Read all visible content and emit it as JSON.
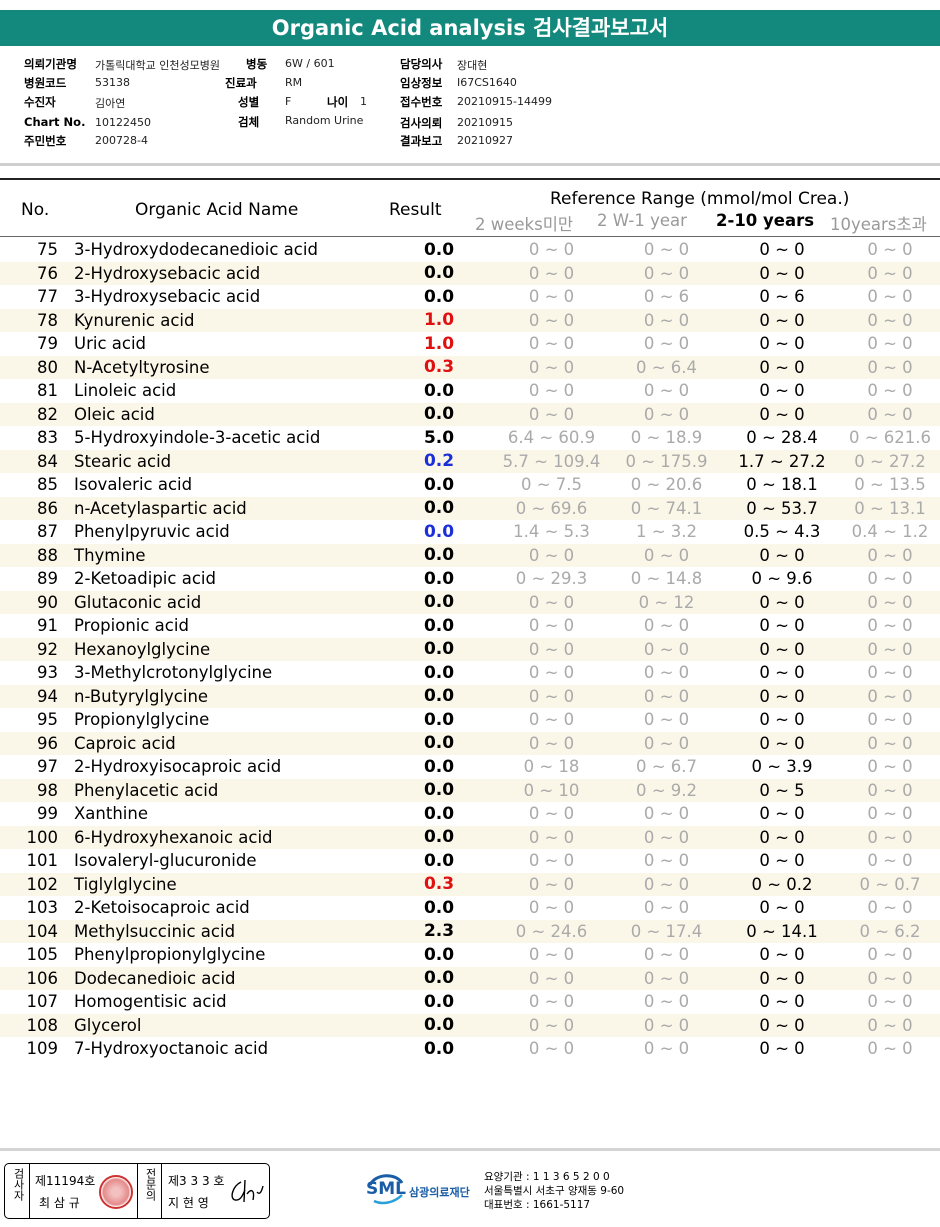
{
  "title": "Organic Acid analysis 검사결과보고서",
  "info": {
    "hospital_label": "의뢰기관명",
    "hospital": "가톨릭대학교 인천성모병원",
    "ward_label": "병동",
    "ward": "6W / 601",
    "doctor_label": "담당의사",
    "doctor": "장대현",
    "code_label": "병원코드",
    "code": "53138",
    "dept_label": "진료과",
    "dept": "RM",
    "clinical_label": "임상정보",
    "clinical": "I67CS1640",
    "patient_label": "수진자",
    "patient": "김아연",
    "sex_label": "성별",
    "sex": "F",
    "age_label": "나이",
    "age": "1",
    "receipt_label": "접수번호",
    "receipt": "20210915-14499",
    "chart_label": "Chart No.",
    "chart": "10122450",
    "specimen_label": "검체",
    "specimen": "Random Urine",
    "request_label": "검사의뢰",
    "request": "20210915",
    "id_label": "주민번호",
    "id": "200728-4",
    "report_label": "결과보고",
    "report": "20210927"
  },
  "table_header": {
    "no": "No.",
    "name": "Organic Acid Name",
    "result": "Result",
    "ref": "Reference Range (mmol/mol Crea.)",
    "c1": "2 weeks미만",
    "c2": "2 W-1 year",
    "c3": "2-10 years",
    "c4": "10years초과"
  },
  "colors": {
    "high": "#e01010",
    "low": "#1b2ed8",
    "header_bar": "#13897d"
  },
  "rows": [
    {
      "no": "75",
      "name": "3-Hydroxydodecanedioic acid",
      "result": "0.0",
      "flag": "",
      "r1": "0 ~ 0",
      "r2": "0 ~ 0",
      "r3": "0 ~ 0",
      "r4": "0 ~ 0"
    },
    {
      "no": "76",
      "name": "2-Hydroxysebacic acid",
      "result": "0.0",
      "flag": "",
      "r1": "0 ~ 0",
      "r2": "0 ~ 0",
      "r3": "0 ~ 0",
      "r4": "0 ~ 0"
    },
    {
      "no": "77",
      "name": "3-Hydroxysebacic acid",
      "result": "0.0",
      "flag": "",
      "r1": "0 ~ 0",
      "r2": "0 ~ 6",
      "r3": "0 ~ 6",
      "r4": "0 ~ 0"
    },
    {
      "no": "78",
      "name": "Kynurenic acid",
      "result": "1.0",
      "flag": "high",
      "r1": "0 ~ 0",
      "r2": "0 ~ 0",
      "r3": "0 ~ 0",
      "r4": "0 ~ 0"
    },
    {
      "no": "79",
      "name": "Uric acid",
      "result": "1.0",
      "flag": "high",
      "r1": "0 ~ 0",
      "r2": "0 ~ 0",
      "r3": "0 ~ 0",
      "r4": "0 ~ 0"
    },
    {
      "no": "80",
      "name": "N-Acetyltyrosine",
      "result": "0.3",
      "flag": "high",
      "r1": "0 ~ 0",
      "r2": "0 ~ 6.4",
      "r3": "0 ~ 0",
      "r4": "0 ~ 0"
    },
    {
      "no": "81",
      "name": "Linoleic acid",
      "result": "0.0",
      "flag": "",
      "r1": "0 ~ 0",
      "r2": "0 ~ 0",
      "r3": "0 ~ 0",
      "r4": "0 ~ 0"
    },
    {
      "no": "82",
      "name": "Oleic acid",
      "result": "0.0",
      "flag": "",
      "r1": "0 ~ 0",
      "r2": "0 ~ 0",
      "r3": "0 ~ 0",
      "r4": "0 ~ 0"
    },
    {
      "no": "83",
      "name": "5-Hydroxyindole-3-acetic acid",
      "result": "5.0",
      "flag": "",
      "r1": "6.4 ~ 60.9",
      "r2": "0 ~ 18.9",
      "r3": "0 ~ 28.4",
      "r4": "0 ~ 621.6"
    },
    {
      "no": "84",
      "name": "Stearic acid",
      "result": "0.2",
      "flag": "low",
      "r1": "5.7 ~ 109.4",
      "r2": "0 ~ 175.9",
      "r3": "1.7 ~ 27.2",
      "r4": "0 ~ 27.2"
    },
    {
      "no": "85",
      "name": "Isovaleric acid",
      "result": "0.0",
      "flag": "",
      "r1": "0 ~ 7.5",
      "r2": "0 ~ 20.6",
      "r3": "0 ~ 18.1",
      "r4": "0 ~ 13.5"
    },
    {
      "no": "86",
      "name": "n-Acetylaspartic acid",
      "result": "0.0",
      "flag": "",
      "r1": "0 ~ 69.6",
      "r2": "0 ~ 74.1",
      "r3": "0 ~ 53.7",
      "r4": "0 ~ 13.1"
    },
    {
      "no": "87",
      "name": "Phenylpyruvic acid",
      "result": "0.0",
      "flag": "low",
      "r1": "1.4 ~ 5.3",
      "r2": "1 ~ 3.2",
      "r3": "0.5 ~ 4.3",
      "r4": "0.4 ~ 1.2"
    },
    {
      "no": "88",
      "name": "Thymine",
      "result": "0.0",
      "flag": "",
      "r1": "0 ~ 0",
      "r2": "0 ~ 0",
      "r3": "0 ~ 0",
      "r4": "0 ~ 0"
    },
    {
      "no": "89",
      "name": "2-Ketoadipic acid",
      "result": "0.0",
      "flag": "",
      "r1": "0 ~ 29.3",
      "r2": "0 ~ 14.8",
      "r3": "0 ~ 9.6",
      "r4": "0 ~ 0"
    },
    {
      "no": "90",
      "name": "Glutaconic acid",
      "result": "0.0",
      "flag": "",
      "r1": "0 ~ 0",
      "r2": "0 ~ 12",
      "r3": "0 ~ 0",
      "r4": "0 ~ 0"
    },
    {
      "no": "91",
      "name": "Propionic acid",
      "result": "0.0",
      "flag": "",
      "r1": "0 ~ 0",
      "r2": "0 ~ 0",
      "r3": "0 ~ 0",
      "r4": "0 ~ 0"
    },
    {
      "no": "92",
      "name": "Hexanoylglycine",
      "result": "0.0",
      "flag": "",
      "r1": "0 ~ 0",
      "r2": "0 ~ 0",
      "r3": "0 ~ 0",
      "r4": "0 ~ 0"
    },
    {
      "no": "93",
      "name": "3-Methylcrotonylglycine",
      "result": "0.0",
      "flag": "",
      "r1": "0 ~ 0",
      "r2": "0 ~ 0",
      "r3": "0 ~ 0",
      "r4": "0 ~ 0"
    },
    {
      "no": "94",
      "name": "n-Butyrylglycine",
      "result": "0.0",
      "flag": "",
      "r1": "0 ~ 0",
      "r2": "0 ~ 0",
      "r3": "0 ~ 0",
      "r4": "0 ~ 0"
    },
    {
      "no": "95",
      "name": "Propionylglycine",
      "result": "0.0",
      "flag": "",
      "r1": "0 ~ 0",
      "r2": "0 ~ 0",
      "r3": "0 ~ 0",
      "r4": "0 ~ 0"
    },
    {
      "no": "96",
      "name": "Caproic acid",
      "result": "0.0",
      "flag": "",
      "r1": "0 ~ 0",
      "r2": "0 ~ 0",
      "r3": "0 ~ 0",
      "r4": "0 ~ 0"
    },
    {
      "no": "97",
      "name": "2-Hydroxyisocaproic acid",
      "result": "0.0",
      "flag": "",
      "r1": "0 ~ 18",
      "r2": "0 ~ 6.7",
      "r3": "0 ~ 3.9",
      "r4": "0 ~ 0"
    },
    {
      "no": "98",
      "name": "Phenylacetic acid",
      "result": "0.0",
      "flag": "",
      "r1": "0 ~ 10",
      "r2": "0 ~ 9.2",
      "r3": "0 ~ 5",
      "r4": "0 ~ 0"
    },
    {
      "no": "99",
      "name": "Xanthine",
      "result": "0.0",
      "flag": "",
      "r1": "0 ~ 0",
      "r2": "0 ~ 0",
      "r3": "0 ~ 0",
      "r4": "0 ~ 0"
    },
    {
      "no": "100",
      "name": "6-Hydroxyhexanoic acid",
      "result": "0.0",
      "flag": "",
      "r1": "0 ~ 0",
      "r2": "0 ~ 0",
      "r3": "0 ~ 0",
      "r4": "0 ~ 0"
    },
    {
      "no": "101",
      "name": "Isovaleryl-glucuronide",
      "result": "0.0",
      "flag": "",
      "r1": "0 ~ 0",
      "r2": "0 ~ 0",
      "r3": "0 ~ 0",
      "r4": "0 ~ 0"
    },
    {
      "no": "102",
      "name": "Tiglylglycine",
      "result": "0.3",
      "flag": "high",
      "r1": "0 ~ 0",
      "r2": "0 ~ 0",
      "r3": "0 ~ 0.2",
      "r4": "0 ~ 0.7"
    },
    {
      "no": "103",
      "name": "2-Ketoisocaproic acid",
      "result": "0.0",
      "flag": "",
      "r1": "0 ~ 0",
      "r2": "0 ~ 0",
      "r3": "0 ~ 0",
      "r4": "0 ~ 0"
    },
    {
      "no": "104",
      "name": "Methylsuccinic acid",
      "result": "2.3",
      "flag": "",
      "r1": "0 ~ 24.6",
      "r2": "0 ~ 17.4",
      "r3": "0 ~ 14.1",
      "r4": "0 ~ 6.2"
    },
    {
      "no": "105",
      "name": "Phenylpropionylglycine",
      "result": "0.0",
      "flag": "",
      "r1": "0 ~ 0",
      "r2": "0 ~ 0",
      "r3": "0 ~ 0",
      "r4": "0 ~ 0"
    },
    {
      "no": "106",
      "name": "Dodecanedioic acid",
      "result": "0.0",
      "flag": "",
      "r1": "0 ~ 0",
      "r2": "0 ~ 0",
      "r3": "0 ~ 0",
      "r4": "0 ~ 0"
    },
    {
      "no": "107",
      "name": "Homogentisic acid",
      "result": "0.0",
      "flag": "",
      "r1": "0 ~ 0",
      "r2": "0 ~ 0",
      "r3": "0 ~ 0",
      "r4": "0 ~ 0"
    },
    {
      "no": "108",
      "name": "Glycerol",
      "result": "0.0",
      "flag": "",
      "r1": "0 ~ 0",
      "r2": "0 ~ 0",
      "r3": "0 ~ 0",
      "r4": "0 ~ 0"
    },
    {
      "no": "109",
      "name": "7-Hydroxyoctanoic acid",
      "result": "0.0",
      "flag": "",
      "r1": "0 ~ 0",
      "r2": "0 ~ 0",
      "r3": "0 ~ 0",
      "r4": "0 ~ 0"
    }
  ],
  "footer": {
    "tester_label": "검사자",
    "tester_no": "제11194호",
    "tester_name": "최 삼 규",
    "specialist_label": "전문의",
    "specialist_no": "제3 3 3 호",
    "specialist_name": "지 현 영",
    "logo": "SML",
    "org_name": "삼광의료재단",
    "line1": "요양기관 : 1 1 3 6 5 2 0 0",
    "line2": "서울특별시 서초구 양재동 9-60",
    "line3": "대표번호 : 1661-5117"
  }
}
